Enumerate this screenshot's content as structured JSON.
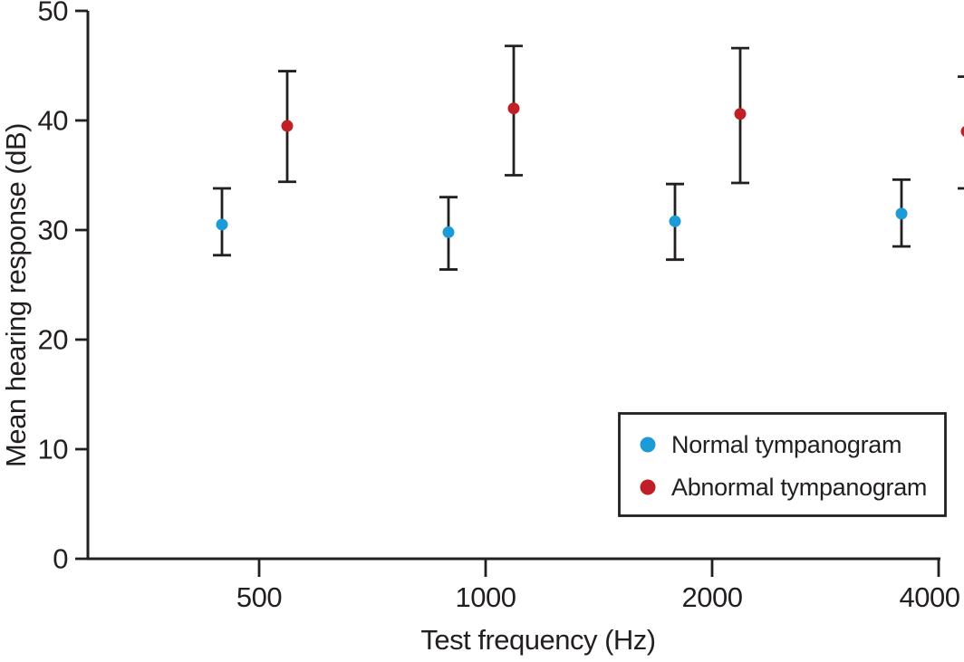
{
  "chart_data": {
    "type": "scatter",
    "subtype": "means-with-error-bars",
    "title": "",
    "xlabel": "Test frequency (Hz)",
    "ylabel": "Mean hearing response (dB)",
    "x_scale": "octave-spaced categories (log2)",
    "categories": [
      "500",
      "1000",
      "2000",
      "4000"
    ],
    "y_ticks": [
      "0",
      "10",
      "20",
      "30",
      "40",
      "50"
    ],
    "ylim": [
      0,
      50
    ],
    "grid": false,
    "legend_position": "inside lower right",
    "series": [
      {
        "name": "Normal tympanogram",
        "color": "#1E9BD7",
        "means": [
          30.5,
          29.8,
          30.8,
          31.5
        ],
        "ci_low": [
          27.7,
          26.4,
          27.3,
          28.5
        ],
        "ci_high": [
          33.8,
          33.0,
          34.2,
          34.6
        ]
      },
      {
        "name": "Abnormal tympanogram",
        "color": "#C11F26",
        "means": [
          39.5,
          41.1,
          40.6,
          39.0
        ],
        "ci_low": [
          34.4,
          35.0,
          34.3,
          33.8
        ],
        "ci_high": [
          44.5,
          46.8,
          46.6,
          44.0
        ]
      }
    ],
    "axis_color": "#231f20",
    "error_bar_color": "#231f20",
    "background_color": "#ffffff"
  }
}
